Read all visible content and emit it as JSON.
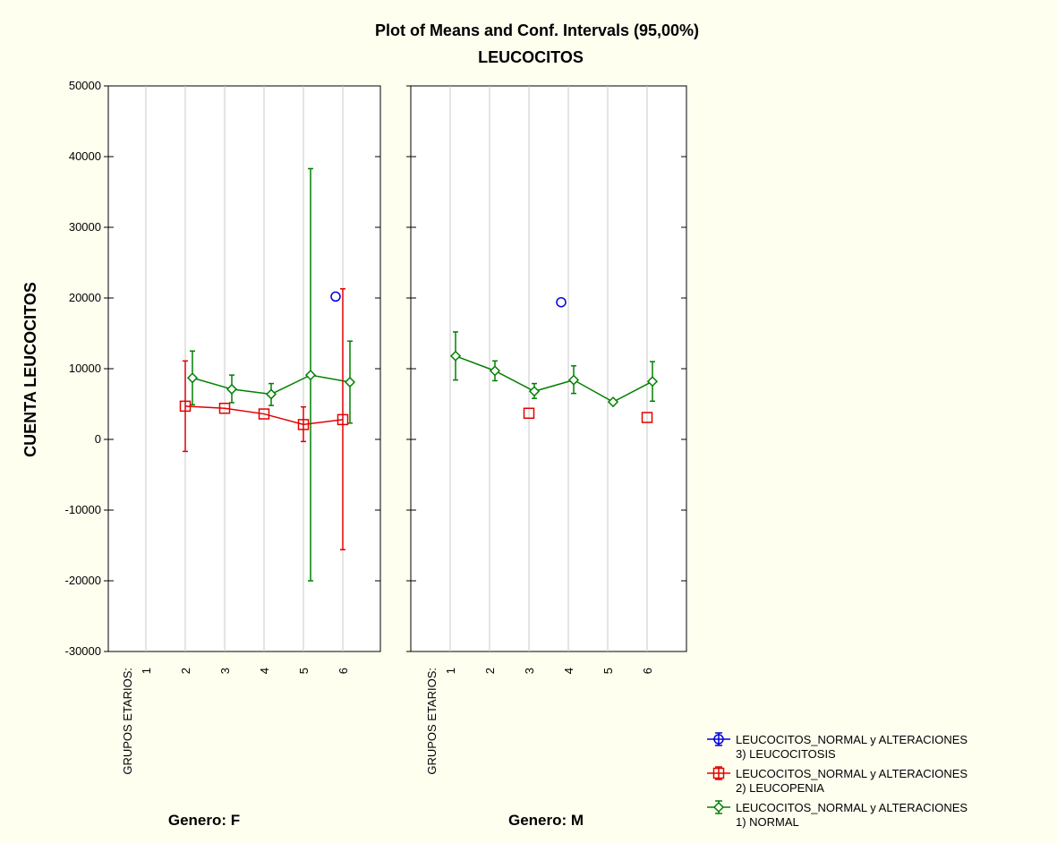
{
  "chart_data": {
    "type": "line",
    "title": "Plot of Means and Conf. Intervals (95,00%)",
    "subtitle": "LEUCOCITOS",
    "ylabel": "CUENTA LEUCOCITOS",
    "xlabel": "GRUPOS ETARIOS:",
    "ylim": [
      -30000,
      50000
    ],
    "yticks": [
      50000,
      40000,
      30000,
      20000,
      10000,
      0,
      -10000,
      -20000,
      -30000
    ],
    "categories": [
      "1",
      "2",
      "3",
      "4",
      "5",
      "6"
    ],
    "grid": true,
    "legend_position": "bottom-right",
    "panels": [
      {
        "label": "Genero: F",
        "series": [
          {
            "name": "LEUCOCITOS_NORMAL y ALTERACIONES\n1) NORMAL",
            "color": "#008000",
            "marker": "diamond",
            "points": [
              {
                "x": 2,
                "mean": 8700,
                "lo": 4900,
                "hi": 12500
              },
              {
                "x": 3,
                "mean": 7100,
                "lo": 5200,
                "hi": 9100
              },
              {
                "x": 4,
                "mean": 6400,
                "lo": 4800,
                "hi": 7900
              },
              {
                "x": 5,
                "mean": 9100,
                "lo": -20000,
                "hi": 38300
              },
              {
                "x": 6,
                "mean": 8100,
                "lo": 2300,
                "hi": 13900
              }
            ]
          },
          {
            "name": "LEUCOCITOS_NORMAL y ALTERACIONES\n2) LEUCOPENIA",
            "color": "#e00000",
            "marker": "square",
            "points": [
              {
                "x": 2,
                "mean": 4700,
                "lo": -1700,
                "hi": 11100
              },
              {
                "x": 3,
                "mean": 4400,
                "lo": null,
                "hi": null
              },
              {
                "x": 4,
                "mean": 3600,
                "lo": null,
                "hi": null
              },
              {
                "x": 5,
                "mean": 2100,
                "lo": -300,
                "hi": 4600
              },
              {
                "x": 6,
                "mean": 2800,
                "lo": -15600,
                "hi": 21300
              }
            ]
          },
          {
            "name": "LEUCOCITOS_NORMAL y ALTERACIONES\n3) LEUCOCITOSIS",
            "color": "#0000e0",
            "marker": "circle",
            "points": [
              {
                "x": 6,
                "mean": 20200,
                "lo": null,
                "hi": null
              }
            ]
          }
        ]
      },
      {
        "label": "Genero: M",
        "series": [
          {
            "name": "LEUCOCITOS_NORMAL y ALTERACIONES\n1) NORMAL",
            "color": "#008000",
            "marker": "diamond",
            "points": [
              {
                "x": 1,
                "mean": 11800,
                "lo": 8400,
                "hi": 15200
              },
              {
                "x": 2,
                "mean": 9700,
                "lo": 8300,
                "hi": 11100
              },
              {
                "x": 3,
                "mean": 6800,
                "lo": 5800,
                "hi": 7900
              },
              {
                "x": 4,
                "mean": 8400,
                "lo": 6500,
                "hi": 10400
              },
              {
                "x": 5,
                "mean": 5300,
                "lo": null,
                "hi": null
              },
              {
                "x": 6,
                "mean": 8200,
                "lo": 5400,
                "hi": 11000
              }
            ]
          },
          {
            "name": "LEUCOCITOS_NORMAL y ALTERACIONES\n2) LEUCOPENIA",
            "color": "#e00000",
            "marker": "square",
            "connect": false,
            "points": [
              {
                "x": 3,
                "mean": 3700,
                "lo": null,
                "hi": null
              },
              {
                "x": 6,
                "mean": 3100,
                "lo": null,
                "hi": null
              }
            ]
          },
          {
            "name": "LEUCOCITOS_NORMAL y ALTERACIONES\n3) LEUCOCITOSIS",
            "color": "#0000e0",
            "marker": "circle",
            "points": [
              {
                "x": 4,
                "mean": 19400,
                "lo": null,
                "hi": null
              }
            ]
          }
        ]
      }
    ],
    "legend": [
      {
        "line1": "LEUCOCITOS_NORMAL y ALTERACIONES",
        "line2": "3) LEUCOCITOSIS",
        "color": "#0000e0",
        "marker": "circle"
      },
      {
        "line1": "LEUCOCITOS_NORMAL y ALTERACIONES",
        "line2": "2) LEUCOPENIA",
        "color": "#e00000",
        "marker": "square"
      },
      {
        "line1": "LEUCOCITOS_NORMAL y ALTERACIONES",
        "line2": "1) NORMAL",
        "color": "#008000",
        "marker": "diamond"
      }
    ]
  }
}
